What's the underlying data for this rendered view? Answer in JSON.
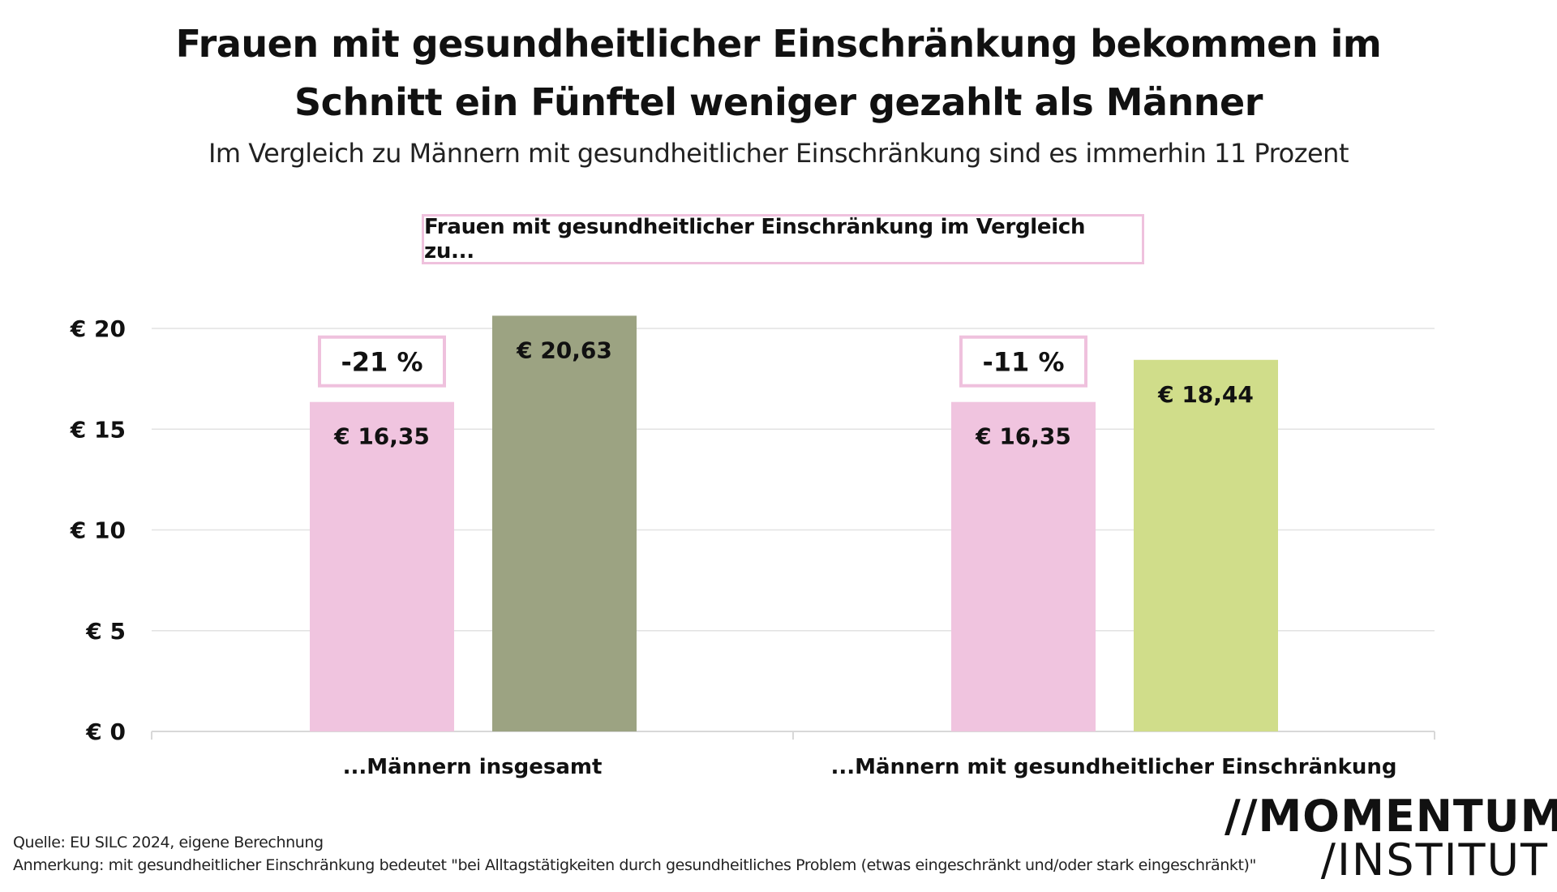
{
  "chart_data": {
    "type": "bar",
    "title": "Frauen mit gesundheitlicher Einschränkung bekommen im Schnitt ein Fünftel weniger gezahlt als Männer",
    "title_lines": [
      "Frauen mit gesundheitlicher Einschränkung bekommen im",
      "Schnitt ein Fünftel weniger gezahlt als Männer"
    ],
    "subtitle": "Im Vergleich zu Männern mit gesundheitlicher Einschränkung sind es immerhin 11 Prozent",
    "legend_box": "Frauen mit gesundheitlicher Einschränkung im Vergleich zu...",
    "categories": [
      "...Männern insgesamt",
      "...Männern mit gesundheitlicher Einschränkung"
    ],
    "groups": [
      {
        "bars": [
          {
            "value": 16.35,
            "label": "€ 16,35",
            "color": "#f0c4df"
          },
          {
            "value": 20.63,
            "label": "€ 20,63",
            "color": "#9ca382"
          }
        ],
        "difference": "-21 %"
      },
      {
        "bars": [
          {
            "value": 16.35,
            "label": "€ 16,35",
            "color": "#f0c4df"
          },
          {
            "value": 18.44,
            "label": "€ 18,44",
            "color": "#d0dd8a"
          }
        ],
        "difference": "-11 %"
      }
    ],
    "yticks": [
      0,
      5,
      10,
      15,
      20
    ],
    "ytick_labels": [
      "€ 0",
      "€ 5",
      "€ 10",
      "€ 15",
      "€ 20"
    ],
    "ylim": [
      0,
      20
    ],
    "grid": true,
    "xlabel": "",
    "ylabel": ""
  },
  "footer": {
    "source": "Quelle: EU SILC 2024, eigene Berechnung",
    "note": "Anmerkung: mit gesundheitlicher Einschränkung bedeutet \"bei Alltagstätigkeiten durch gesundheitliches Problem (etwas eingeschränkt und/oder stark eingeschränkt)\""
  },
  "logo": {
    "line1": "//MOMENTUM",
    "line2": "/INSTITUT"
  },
  "colors": {
    "pink": "#f0c4df",
    "olive": "#9ca382",
    "lime": "#d0dd8a",
    "box_border": "#efc1dd",
    "grid": "#e2e2e2"
  }
}
